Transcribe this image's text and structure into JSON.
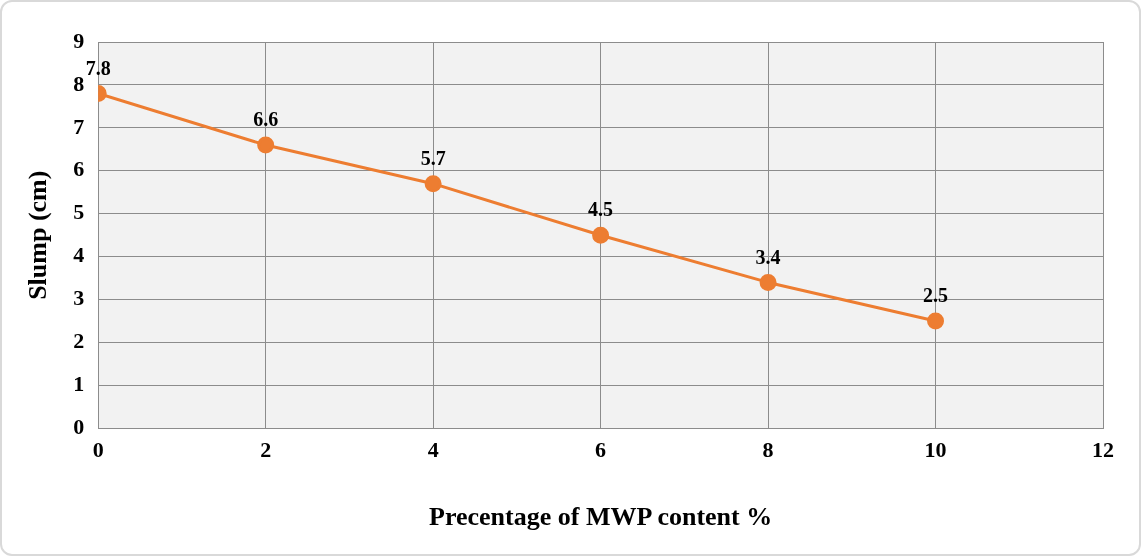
{
  "chart_data": {
    "type": "line",
    "xlabel": "Precentage of MWP content %",
    "ylabel": "Slump (cm)",
    "x": [
      0,
      2,
      4,
      6,
      8,
      10
    ],
    "series": [
      {
        "color": "#ed7d31",
        "values": [
          7.8,
          6.6,
          5.7,
          4.5,
          3.4,
          2.5
        ]
      }
    ],
    "xlim": [
      0,
      12
    ],
    "xticks": [
      0,
      2,
      4,
      6,
      8,
      10,
      12
    ],
    "ylim": [
      0,
      9
    ],
    "yticks": [
      0,
      1,
      2,
      3,
      4,
      5,
      6,
      7,
      8,
      9
    ],
    "grid": true,
    "marker": "circle",
    "line_style": "solid",
    "data_labels": true,
    "legend": false
  }
}
